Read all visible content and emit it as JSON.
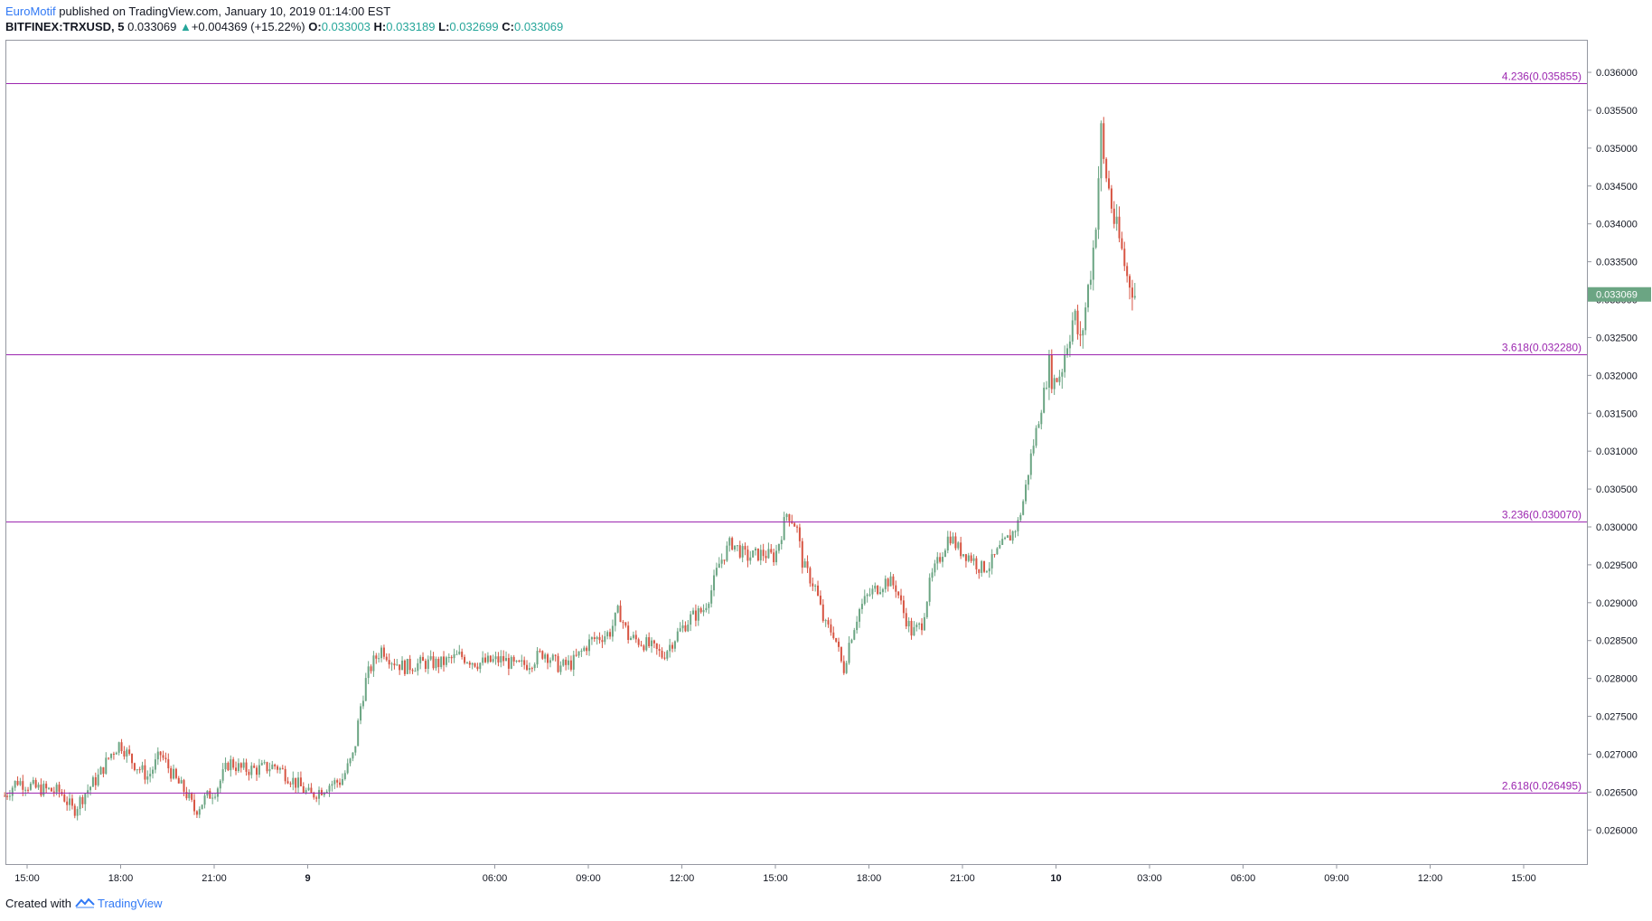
{
  "header": {
    "author": "EuroMotif",
    "published": "published on TradingView.com, January 10, 2019 01:14:00 EST",
    "symbol": "BITFINEX:TRXUSD, 5",
    "last": "0.033069",
    "change_arrow": "▲",
    "change": "+0.004369 (+15.22%)",
    "o_label": "O:",
    "o_value": "0.033003",
    "h_label": "H:",
    "h_value": "0.033189",
    "l_label": "L:",
    "l_value": "0.032699",
    "c_label": "C:",
    "c_value": "0.033069"
  },
  "footer": {
    "created_with": "Created with",
    "brand": "TradingView"
  },
  "colors": {
    "up": "#6ba583",
    "down": "#d75442",
    "fib": "#9c27b0",
    "fib_text": "#9c27b0",
    "price_tag": "#6ba583",
    "brand": "#3179f5"
  },
  "chart_data": {
    "type": "candlestick",
    "ylim": [
      0.02555,
      0.03643
    ],
    "y_ticks": [
      "0.026000",
      "0.026500",
      "0.027000",
      "0.027500",
      "0.028000",
      "0.028500",
      "0.029000",
      "0.029500",
      "0.030000",
      "0.030500",
      "0.031000",
      "0.031500",
      "0.032000",
      "0.032500",
      "0.033000",
      "0.033500",
      "0.034000",
      "0.034500",
      "0.035000",
      "0.035500",
      "0.036000"
    ],
    "x_ticks": [
      {
        "label": "15:00",
        "h": 14.92
      },
      {
        "label": "18:00",
        "h": 17.92
      },
      {
        "label": "21:00",
        "h": 20.92
      },
      {
        "label": "9",
        "h": 23.92
      },
      {
        "label": "06:00",
        "h": 29.92
      },
      {
        "label": "09:00",
        "h": 32.92
      },
      {
        "label": "12:00",
        "h": 35.92
      },
      {
        "label": "15:00",
        "h": 38.92
      },
      {
        "label": "18:00",
        "h": 41.92
      },
      {
        "label": "21:00",
        "h": 44.92
      },
      {
        "label": "10",
        "h": 47.92
      },
      {
        "label": "03:00",
        "h": 50.92
      },
      {
        "label": "06:00",
        "h": 53.92
      },
      {
        "label": "09:00",
        "h": 56.92
      },
      {
        "label": "12:00",
        "h": 59.92
      },
      {
        "label": "15:00",
        "h": 62.92
      }
    ],
    "fib_levels": [
      {
        "label": "4.236(0.035855)",
        "value": 0.035855
      },
      {
        "label": "3.618(0.032280)",
        "value": 0.03228
      },
      {
        "label": "3.236(0.030070)",
        "value": 0.03007
      },
      {
        "label": "2.618(0.026495)",
        "value": 0.026495
      }
    ],
    "last_price": 0.033069,
    "last_price_label": "0.033069",
    "path": [
      [
        14.2,
        0.02645
      ],
      [
        14.6,
        0.02665
      ],
      [
        15.2,
        0.02655
      ],
      [
        16.0,
        0.0265
      ],
      [
        16.4,
        0.02625
      ],
      [
        16.8,
        0.0265
      ],
      [
        17.2,
        0.0267
      ],
      [
        17.6,
        0.027
      ],
      [
        17.9,
        0.02715
      ],
      [
        18.3,
        0.0269
      ],
      [
        18.8,
        0.0267
      ],
      [
        19.2,
        0.027
      ],
      [
        19.7,
        0.02665
      ],
      [
        20.0,
        0.0265
      ],
      [
        20.3,
        0.02625
      ],
      [
        20.6,
        0.0264
      ],
      [
        21.0,
        0.02655
      ],
      [
        21.4,
        0.0269
      ],
      [
        21.8,
        0.0268
      ],
      [
        22.3,
        0.0268
      ],
      [
        22.9,
        0.02685
      ],
      [
        23.6,
        0.0266
      ],
      [
        24.0,
        0.02645
      ],
      [
        24.6,
        0.0266
      ],
      [
        25.0,
        0.02665
      ],
      [
        25.4,
        0.027
      ],
      [
        25.6,
        0.0276
      ],
      [
        25.8,
        0.028
      ],
      [
        26.0,
        0.0282
      ],
      [
        26.3,
        0.0284
      ],
      [
        26.6,
        0.02825
      ],
      [
        27.0,
        0.02815
      ],
      [
        27.6,
        0.0282
      ],
      [
        28.2,
        0.0282
      ],
      [
        28.8,
        0.0283
      ],
      [
        29.4,
        0.0282
      ],
      [
        30.2,
        0.02825
      ],
      [
        30.6,
        0.02815
      ],
      [
        31.0,
        0.0282
      ],
      [
        31.5,
        0.02835
      ],
      [
        32.0,
        0.02815
      ],
      [
        32.4,
        0.0282
      ],
      [
        33.0,
        0.0285
      ],
      [
        33.6,
        0.0286
      ],
      [
        33.9,
        0.0289
      ],
      [
        34.2,
        0.02855
      ],
      [
        34.8,
        0.02845
      ],
      [
        35.3,
        0.0283
      ],
      [
        35.8,
        0.0286
      ],
      [
        36.2,
        0.0288
      ],
      [
        36.6,
        0.0289
      ],
      [
        36.9,
        0.0292
      ],
      [
        37.1,
        0.0295
      ],
      [
        37.5,
        0.0298
      ],
      [
        38.0,
        0.0296
      ],
      [
        38.5,
        0.02965
      ],
      [
        38.9,
        0.0296
      ],
      [
        39.1,
        0.0299
      ],
      [
        39.3,
        0.0302
      ],
      [
        39.6,
        0.03
      ],
      [
        39.8,
        0.0295
      ],
      [
        40.2,
        0.0292
      ],
      [
        40.5,
        0.0287
      ],
      [
        40.8,
        0.0286
      ],
      [
        41.1,
        0.0281
      ],
      [
        41.3,
        0.0285
      ],
      [
        41.6,
        0.0289
      ],
      [
        41.9,
        0.0291
      ],
      [
        42.2,
        0.0292
      ],
      [
        42.5,
        0.0293
      ],
      [
        42.8,
        0.0292
      ],
      [
        43.0,
        0.0289
      ],
      [
        43.3,
        0.0286
      ],
      [
        43.6,
        0.0287
      ],
      [
        43.9,
        0.0293
      ],
      [
        44.2,
        0.0296
      ],
      [
        44.5,
        0.0299
      ],
      [
        44.8,
        0.0297
      ],
      [
        45.2,
        0.0296
      ],
      [
        45.5,
        0.02945
      ],
      [
        45.8,
        0.0295
      ],
      [
        46.1,
        0.0297
      ],
      [
        46.3,
        0.0298
      ],
      [
        46.5,
        0.0299
      ],
      [
        46.7,
        0.03005
      ],
      [
        46.9,
        0.0304
      ],
      [
        47.1,
        0.0309
      ],
      [
        47.3,
        0.0313
      ],
      [
        47.5,
        0.0317
      ],
      [
        47.7,
        0.0321
      ],
      [
        47.9,
        0.0319
      ],
      [
        48.1,
        0.0321
      ],
      [
        48.3,
        0.0325
      ],
      [
        48.5,
        0.0328
      ],
      [
        48.7,
        0.0324
      ],
      [
        48.9,
        0.033
      ],
      [
        49.1,
        0.0336
      ],
      [
        49.25,
        0.0343
      ],
      [
        49.35,
        0.0353
      ],
      [
        49.45,
        0.0348
      ],
      [
        49.6,
        0.0345
      ],
      [
        49.8,
        0.034
      ],
      [
        50.0,
        0.0337
      ],
      [
        50.2,
        0.0333
      ],
      [
        50.35,
        0.0332
      ],
      [
        50.5,
        0.033
      ]
    ]
  }
}
